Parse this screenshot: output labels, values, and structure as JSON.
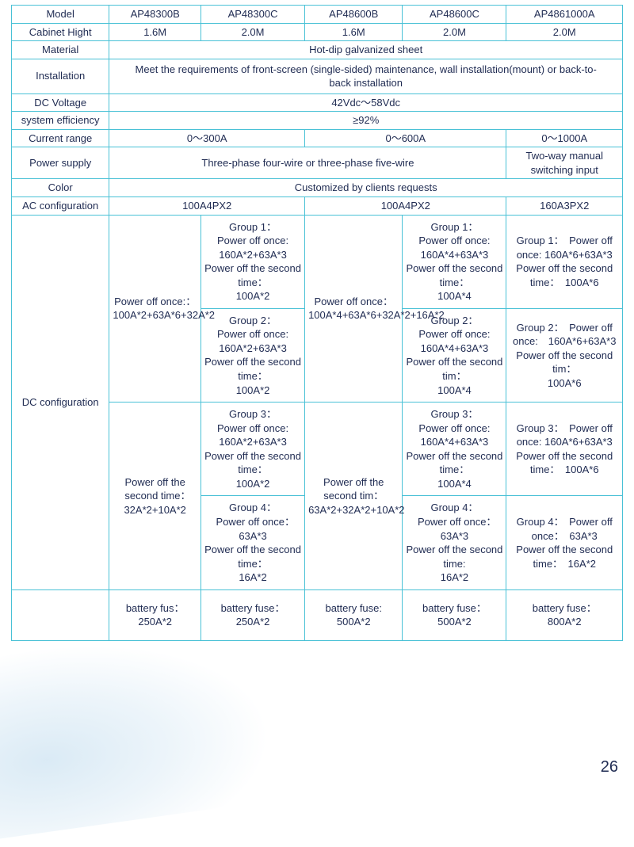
{
  "style": {
    "border_color": "#49c1d6",
    "text_color": "#1f2b52",
    "page_num_color": "#1f2b52",
    "bg": "#ffffff"
  },
  "cols": [
    "Model",
    "AP48300B",
    "AP48300C",
    "AP48600B",
    "AP48600C",
    "AP4861000A"
  ],
  "rows": {
    "cabinet": {
      "label": "Cabinet Hight",
      "vals": [
        "1.6M",
        "2.0M",
        "1.6M",
        "2.0M",
        "2.0M"
      ]
    },
    "material": {
      "label": "Material",
      "val": "Hot-dip galvanized sheet"
    },
    "install": {
      "label": "Installation",
      "val": "Meet the requirements of front-screen (single-sided) maintenance, wall installation(mount) or back-to-back installation"
    },
    "dcv": {
      "label": "DC Voltage",
      "val": "42Vdc～58Vdc"
    },
    "eff": {
      "label": "system efficiency",
      "val": "≥92%"
    },
    "current": {
      "label": "Current range",
      "vals": [
        "0～300A",
        "0～600A",
        "0～1000A"
      ]
    },
    "power": {
      "label": "Power supply",
      "vals": [
        "Three-phase four-wire or three-phase five-wire",
        "Two-way manual switching input"
      ]
    },
    "color": {
      "label": "Color",
      "val": "Customized by clients requests"
    },
    "ac": {
      "label": "AC configuration",
      "vals": [
        "100A4PX2",
        "100A4PX2",
        "160A3PX2"
      ]
    },
    "dc": {
      "label": "DC configuration",
      "b_top": "Power off once:：\n100A*2+63A*6+32A*2",
      "b_bot": "Power off the second time：　32A*2+10A*2",
      "c1": "Group 1：\nPower off once:\n160A*2+63A*3\nPower off the second time：\n100A*2",
      "c2": "Group 2：\nPower off once:\n160A*2+63A*3\nPower off the second time：\n100A*2",
      "c3": "Group 3：\nPower off once:\n160A*2+63A*3\nPower off the second time：\n100A*2",
      "c4": "Group 4：\nPower off once：　63A*3\nPower off the second time：\n16A*2",
      "d_top": "Power off once：\n100A*4+63A*6+32A*2+16A*2",
      "d_bot": "Power off the second tim：\n63A*2+32A*2+10A*2",
      "e1": "Group 1：\nPower off once:\n160A*4+63A*3\nPower off the second time：\n100A*4",
      "e2": "Group 2：\nPower off once:\n160A*4+63A*3\nPower off the second tim：\n100A*4",
      "e3": "Group 3：\nPower off once:\n160A*4+63A*3\nPower off the second time：\n100A*4",
      "e4": "Group 4：\nPower off once：　63A*3\nPower off the second time:\n16A*2",
      "f1": "Group 1：　Power off once: 160A*6+63A*3\nPower off the second time：　100A*6",
      "f2": "Group 2：　Power off once:　160A*6+63A*3\nPower off the second tim：\n100A*6",
      "f3": "Group 3：　Power off once: 160A*6+63A*3\nPower off the second time：　100A*6",
      "f4": "Group 4：　Power off once：　63A*3\nPower off the second time：　16A*2"
    },
    "fuse": [
      "battery fus：\n250A*2",
      "battery fuse：\n250A*2",
      "battery fuse:\n500A*2",
      "battery fuse：\n500A*2",
      "battery fuse：\n800A*2"
    ]
  },
  "page_number": "26"
}
